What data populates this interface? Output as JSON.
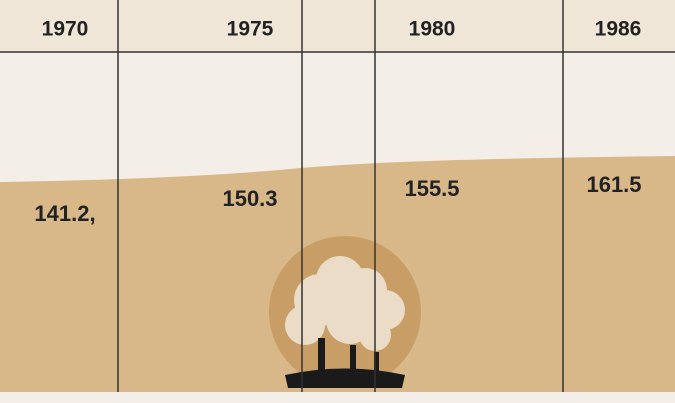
{
  "columns": [
    {
      "year": "1970",
      "value": "141.2,"
    },
    {
      "year": "1975",
      "value": "150.3"
    },
    {
      "year": "1980",
      "value": "155.5"
    },
    {
      "year": "1986",
      "value": "161.5"
    }
  ]
}
